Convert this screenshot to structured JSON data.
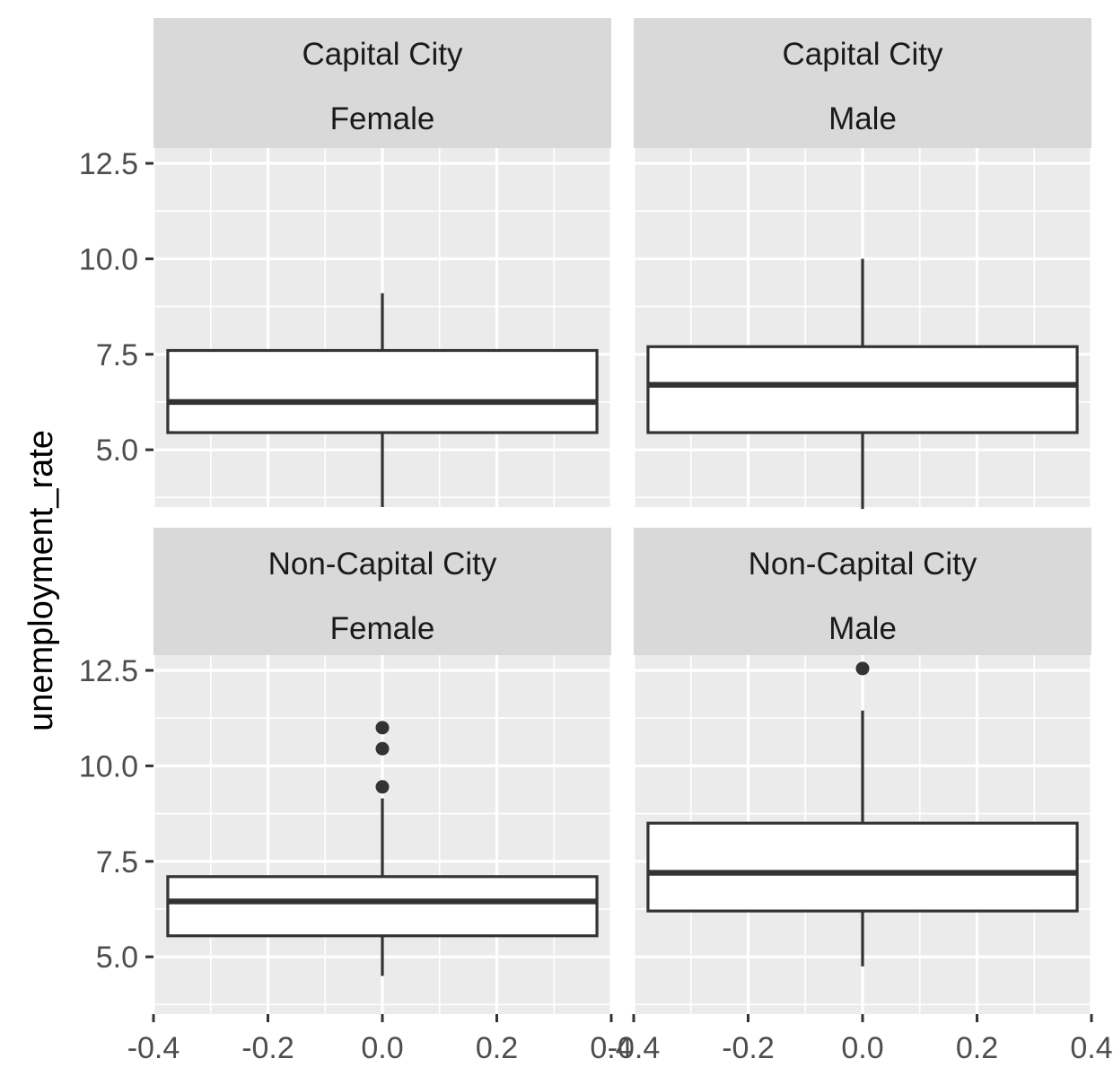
{
  "chart_data": {
    "type": "boxplot",
    "facets": "2x2 grid",
    "xlabel": "",
    "ylabel": "unemployment_rate",
    "xlim": [
      -0.4,
      0.4
    ],
    "ylim": [
      3.5,
      12.9
    ],
    "x_ticks": [
      "-0.4",
      "-0.2",
      "0.0",
      "0.2",
      "0.4"
    ],
    "y_ticks": [
      "5.0",
      "7.5",
      "10.0",
      "12.5"
    ],
    "panels": [
      {
        "strip": [
          "Capital City",
          "Female"
        ],
        "box": {
          "lower_whisker": 3.5,
          "q1": 5.45,
          "median": 6.25,
          "q3": 7.6,
          "upper_whisker": 9.1,
          "outliers": []
        }
      },
      {
        "strip": [
          "Capital City",
          "Male"
        ],
        "box": {
          "lower_whisker": 3.45,
          "q1": 5.45,
          "median": 6.7,
          "q3": 7.7,
          "upper_whisker": 10.0,
          "outliers": []
        }
      },
      {
        "strip": [
          "Non-Capital City",
          "Female"
        ],
        "box": {
          "lower_whisker": 4.5,
          "q1": 5.55,
          "median": 6.45,
          "q3": 7.1,
          "upper_whisker": 9.15,
          "outliers": [
            9.45,
            10.45,
            11.0
          ]
        }
      },
      {
        "strip": [
          "Non-Capital City",
          "Male"
        ],
        "box": {
          "lower_whisker": 4.75,
          "q1": 6.2,
          "median": 7.2,
          "q3": 8.5,
          "upper_whisker": 11.45,
          "outliers": [
            12.55
          ]
        }
      }
    ],
    "colors": {
      "panel_background": "#ebebeb",
      "strip_background": "#d9d9d9",
      "grid": "#ffffff",
      "box_fill": "#ffffff",
      "box_line": "#333333"
    }
  }
}
